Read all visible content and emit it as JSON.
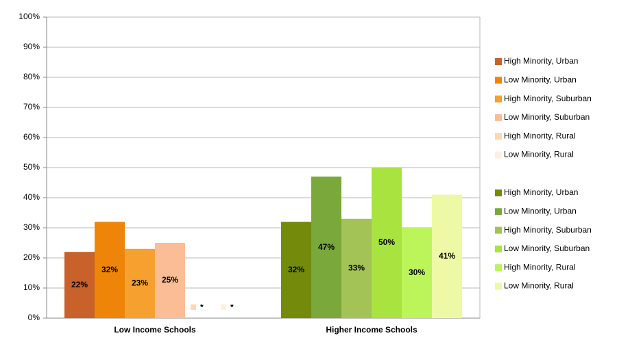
{
  "chart_data": {
    "type": "bar",
    "categories": [
      "Low Income Schools",
      "Higher Income Schools"
    ],
    "series": [
      {
        "name": "High Minority, Urban",
        "color": "#c8622a",
        "values": [
          22,
          null
        ],
        "value_labels": [
          "22%",
          null
        ]
      },
      {
        "name": "Low Minority, Urban",
        "color": "#ee8509",
        "values": [
          32,
          null
        ],
        "value_labels": [
          "32%",
          null
        ]
      },
      {
        "name": "High Minority, Suburban",
        "color": "#f6a12f",
        "values": [
          23,
          null
        ],
        "value_labels": [
          "23%",
          null
        ]
      },
      {
        "name": "Low Minority, Suburban",
        "color": "#fbbd96",
        "values": [
          25,
          null
        ],
        "value_labels": [
          "25%",
          null
        ]
      },
      {
        "name": "High Minority, Rural",
        "color": "#fdd8b5",
        "values": [
          null,
          null
        ],
        "value_labels": [
          "*",
          null
        ]
      },
      {
        "name": "Low Minority, Rural",
        "color": "#fdf0e3",
        "values": [
          null,
          null
        ],
        "value_labels": [
          "*",
          null
        ]
      },
      {
        "name": "High Minority, Urban",
        "color": "#738a0a",
        "values": [
          null,
          32
        ],
        "value_labels": [
          null,
          "32%"
        ]
      },
      {
        "name": "Low Minority, Urban",
        "color": "#7aa83a",
        "values": [
          null,
          47
        ],
        "value_labels": [
          null,
          "47%"
        ]
      },
      {
        "name": "High Minority, Suburban",
        "color": "#a4c357",
        "values": [
          null,
          33
        ],
        "value_labels": [
          null,
          "33%"
        ]
      },
      {
        "name": "Low Minority, Suburban",
        "color": "#a8e33f",
        "values": [
          null,
          50
        ],
        "value_labels": [
          null,
          "50%"
        ]
      },
      {
        "name": "High Minority, Rural",
        "color": "#bbf55a",
        "values": [
          null,
          30
        ],
        "value_labels": [
          null,
          "30%"
        ]
      },
      {
        "name": "Low Minority, Rural",
        "color": "#eef9a6",
        "values": [
          null,
          41
        ],
        "value_labels": [
          null,
          "41%"
        ]
      }
    ],
    "ylim": [
      0,
      100
    ],
    "yticks": [
      {
        "value": 0,
        "label": "0%"
      },
      {
        "value": 10,
        "label": "10%"
      },
      {
        "value": 20,
        "label": "20%"
      },
      {
        "value": 30,
        "label": "30%"
      },
      {
        "value": 40,
        "label": "40%"
      },
      {
        "value": 50,
        "label": "50%"
      },
      {
        "value": 60,
        "label": "60%"
      },
      {
        "value": 70,
        "label": "70%"
      },
      {
        "value": 80,
        "label": "80%"
      },
      {
        "value": 90,
        "label": "90%"
      },
      {
        "value": 100,
        "label": "100%"
      }
    ],
    "grid": true,
    "legend": "right"
  }
}
